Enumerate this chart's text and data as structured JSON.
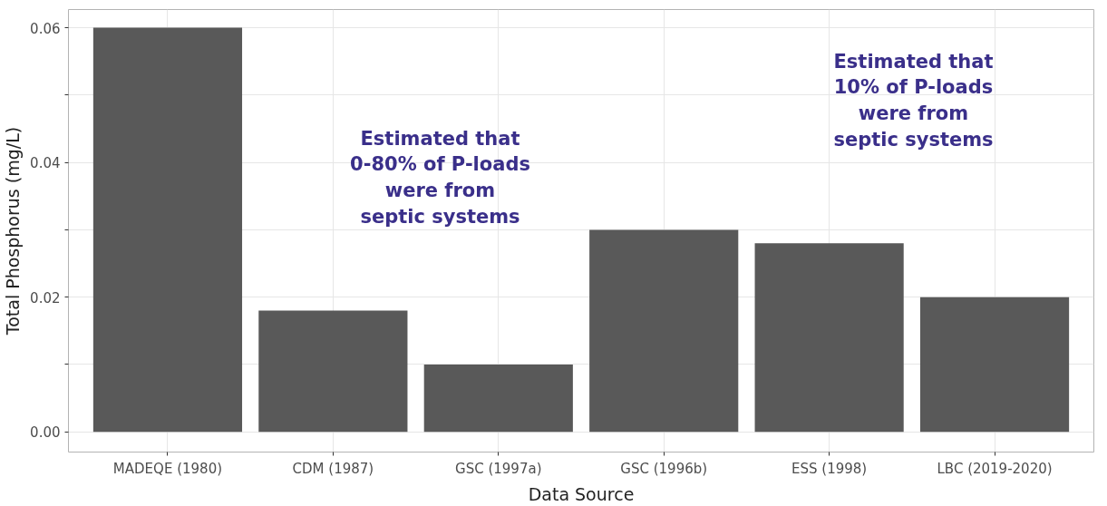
{
  "chart_data": {
    "type": "bar",
    "xlabel": "Data Source",
    "ylabel": "Total Phosphorus (mg/L)",
    "categories": [
      "MADEQE (1980)",
      "CDM (1987)",
      "GSC (1997a)",
      "GSC (1996b)",
      "ESS (1998)",
      "LBC (2019-2020)"
    ],
    "values": [
      0.06,
      0.018,
      0.01,
      0.03,
      0.028,
      0.02
    ],
    "color": "#595959",
    "ylim": [
      -0.003,
      0.0627
    ],
    "yticks": [
      {
        "value": 0.0,
        "label": "0.00"
      },
      {
        "value": 0.01,
        "label": null
      },
      {
        "value": 0.02,
        "label": "0.02"
      },
      {
        "value": 0.03,
        "label": null
      },
      {
        "value": 0.04,
        "label": "0.04"
      },
      {
        "value": 0.05,
        "label": null
      },
      {
        "value": 0.06,
        "label": "0.06"
      }
    ],
    "grid": true,
    "annotations": [
      "Estimated that\n0-80% of P-loads\nwere from\nseptic systems",
      "Estimated that\n10% of P-loads\nwere from\nseptic systems"
    ]
  }
}
